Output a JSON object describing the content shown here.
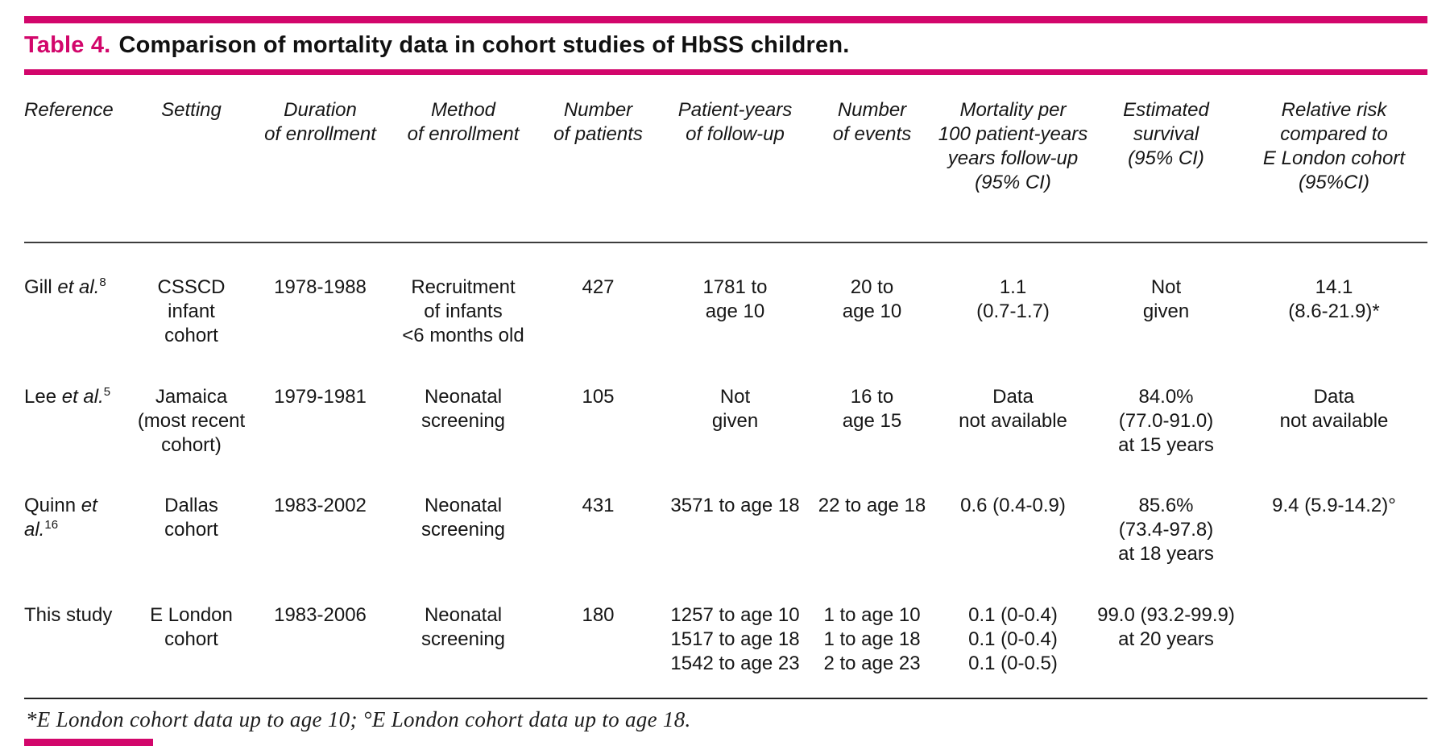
{
  "colors": {
    "accent": "#d2066b",
    "rule": "#3d3d3d",
    "text": "#161616"
  },
  "header": {
    "table_label": "Table 4.",
    "table_title": "Comparison of mortality data in cohort studies of HbSS children."
  },
  "table": {
    "columns": [
      "Reference",
      "Setting",
      "Duration\nof enrollment",
      "Method\nof enrollment",
      "Number\nof patients",
      "Patient-years\nof follow-up",
      "Number\nof events",
      "Mortality per\n100 patient-years\nyears follow-up\n(95% CI)",
      "Estimated\nsurvival\n(95% CI)",
      "Relative risk\ncompared to\nE London cohort\n(95%CI)"
    ],
    "rows": [
      {
        "ref": {
          "name": "Gill",
          "etal": "et al.",
          "sup": "8"
        },
        "setting": "CSSCD infant\ncohort",
        "duration": "1978-1988",
        "method": "Recruitment\nof infants\n<6 months old",
        "patients": "427",
        "patient_years": "1781 to\nage 10",
        "events": "20 to\nage 10",
        "mortality": "1.1\n(0.7-1.7)",
        "survival": "Not\ngiven",
        "relative_risk": "14.1\n(8.6-21.9)*"
      },
      {
        "ref": {
          "name": "Lee",
          "etal": "et al.",
          "sup": "5"
        },
        "setting": "Jamaica\n(most recent\ncohort)",
        "duration": "1979-1981",
        "method": "Neonatal\nscreening",
        "patients": "105",
        "patient_years": "Not\ngiven",
        "events": "16 to\nage 15",
        "mortality": "Data\nnot available",
        "survival": "84.0%\n(77.0-91.0)\nat 15 years",
        "relative_risk": "Data\nnot available"
      },
      {
        "ref": {
          "name": "Quinn",
          "etal": "et al.",
          "sup": "16"
        },
        "setting": "Dallas\ncohort",
        "duration": "1983-2002",
        "method": "Neonatal\nscreening",
        "patients": "431",
        "patient_years": "3571 to age 18",
        "events": "22 to age 18",
        "mortality": "0.6 (0.4-0.9)",
        "survival": "85.6%\n(73.4-97.8)\nat 18 years",
        "relative_risk": "9.4 (5.9-14.2)°"
      },
      {
        "ref": {
          "name": "This study",
          "etal": "",
          "sup": ""
        },
        "setting": "E London\ncohort",
        "duration": "1983-2006",
        "method": "Neonatal\nscreening",
        "patients": "180",
        "patient_years": "1257 to age 10\n1517 to age 18\n1542 to age 23",
        "events": "1 to age 10\n1 to age 18\n2 to age 23",
        "mortality": "0.1 (0-0.4)\n0.1 (0-0.4)\n0.1 (0-0.5)",
        "survival": "99.0 (93.2-99.9)\nat 20 years",
        "relative_risk": ""
      }
    ]
  },
  "footnote": "*E London cohort data up to age 10; °E London cohort data up to age 18."
}
